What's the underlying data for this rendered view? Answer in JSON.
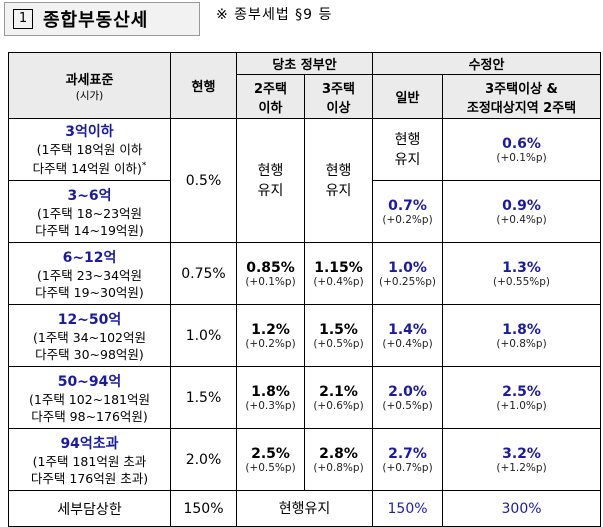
{
  "title": {
    "number": "1",
    "text": "종합부동산세"
  },
  "note": "※ 종부세법 §9 등",
  "header": {
    "col1": "과세표준",
    "col1_sub": "(시가)",
    "current": "현행",
    "orig_group": "당초 정부안",
    "orig_a": [
      "2주택",
      "이하"
    ],
    "orig_b": [
      "3주택",
      "이상"
    ],
    "rev_group": "수정안",
    "rev_a": "일반",
    "rev_b": [
      "3주택이상 &",
      "조정대상지역 2주택"
    ]
  },
  "rows": {
    "r1": {
      "range": "3억이하",
      "sub1": "(1주택 18억원 이하",
      "sub2": "다주택 14억원 이하)",
      "star": "*",
      "rev_a": [
        "현행",
        "유지"
      ],
      "rev_b_rate": "0.6%",
      "rev_b_delta": "(+0.1%p)"
    },
    "r2": {
      "range": "3~6억",
      "sub1": "(1주택 18~23억원",
      "sub2": "다주택 14~19억원)",
      "rev_a_rate": "0.7%",
      "rev_a_delta": "(+0.2%p)",
      "rev_b_rate": "0.9%",
      "rev_b_delta": "(+0.4%p)"
    },
    "r12": {
      "current": "0.5%",
      "orig_a": [
        "현행",
        "유지"
      ],
      "orig_b": [
        "현행",
        "유지"
      ]
    },
    "r3": {
      "range": "6~12억",
      "sub1": "(1주택 23~34억원",
      "sub2": "다주택 19~30억원)",
      "current": "0.75%",
      "orig_a_rate": "0.85%",
      "orig_a_delta": "(+0.1%p)",
      "orig_b_rate": "1.15%",
      "orig_b_delta": "(+0.4%p)",
      "rev_a_rate": "1.0%",
      "rev_a_delta": "(+0.25%p)",
      "rev_b_rate": "1.3%",
      "rev_b_delta": "(+0.55%p)"
    },
    "r4": {
      "range": "12~50억",
      "sub1": "(1주택 34~102억원",
      "sub2": "다주택 30~98억원)",
      "current": "1.0%",
      "orig_a_rate": "1.2%",
      "orig_a_delta": "(+0.2%p)",
      "orig_b_rate": "1.5%",
      "orig_b_delta": "(+0.5%p)",
      "rev_a_rate": "1.4%",
      "rev_a_delta": "(+0.4%p)",
      "rev_b_rate": "1.8%",
      "rev_b_delta": "(+0.8%p)"
    },
    "r5": {
      "range": "50~94억",
      "sub1": "(1주택 102~181억원",
      "sub2": "다주택 98~176억원)",
      "current": "1.5%",
      "orig_a_rate": "1.8%",
      "orig_a_delta": "(+0.3%p)",
      "orig_b_rate": "2.1%",
      "orig_b_delta": "(+0.6%p)",
      "rev_a_rate": "2.0%",
      "rev_a_delta": "(+0.5%p)",
      "rev_b_rate": "2.5%",
      "rev_b_delta": "(+1.0%p)"
    },
    "r6": {
      "range": "94억초과",
      "sub1": "(1주택 181억원 초과",
      "sub2": "다주택 176억원 초과)",
      "current": "2.0%",
      "orig_a_rate": "2.5%",
      "orig_a_delta": "(+0.5%p)",
      "orig_b_rate": "2.8%",
      "orig_b_delta": "(+0.8%p)",
      "rev_a_rate": "2.7%",
      "rev_a_delta": "(+0.7%p)",
      "rev_b_rate": "3.2%",
      "rev_b_delta": "(+1.2%p)"
    },
    "cap": {
      "label": "세부담상한",
      "current": "150%",
      "orig": "현행유지",
      "rev_a": "150%",
      "rev_b": "300%"
    }
  }
}
